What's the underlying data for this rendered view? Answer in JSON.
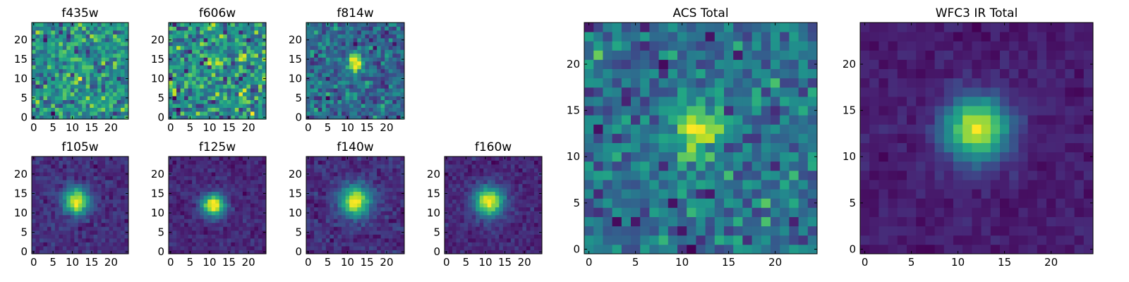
{
  "figure_title": "",
  "chart_data": [
    {
      "type": "heatmap",
      "title": "f435w",
      "size": 25,
      "xticks": [
        0,
        5,
        10,
        15,
        20
      ],
      "yticks": [
        0,
        5,
        10,
        15,
        20
      ],
      "peak": [
        12,
        12
      ],
      "amplitude": 0.05,
      "sigma": 2.2,
      "noise": 0.45,
      "seed": 11
    },
    {
      "type": "heatmap",
      "title": "f606w",
      "size": 25,
      "xticks": [
        0,
        5,
        10,
        15,
        20
      ],
      "yticks": [
        0,
        5,
        10,
        15,
        20
      ],
      "peak": [
        12,
        14
      ],
      "amplitude": 0.08,
      "sigma": 2.0,
      "noise": 0.4,
      "seed": 23
    },
    {
      "type": "heatmap",
      "title": "f814w",
      "size": 25,
      "xticks": [
        0,
        5,
        10,
        15,
        20
      ],
      "yticks": [
        0,
        5,
        10,
        15,
        20
      ],
      "peak": [
        12,
        14
      ],
      "amplitude": 0.35,
      "sigma": 1.5,
      "noise": 0.35,
      "seed": 37
    },
    {
      "type": "heatmap",
      "title": "f105w",
      "size": 25,
      "xticks": [
        0,
        5,
        10,
        15,
        20
      ],
      "yticks": [
        0,
        5,
        10,
        15,
        20
      ],
      "peak": [
        11,
        13
      ],
      "amplitude": 0.75,
      "sigma": 2.3,
      "noise": 0.18,
      "seed": 41
    },
    {
      "type": "heatmap",
      "title": "f125w",
      "size": 25,
      "xticks": [
        0,
        5,
        10,
        15,
        20
      ],
      "yticks": [
        0,
        5,
        10,
        15,
        20
      ],
      "peak": [
        11,
        12
      ],
      "amplitude": 0.85,
      "sigma": 2.0,
      "noise": 0.15,
      "seed": 53
    },
    {
      "type": "heatmap",
      "title": "f140w",
      "size": 25,
      "xticks": [
        0,
        5,
        10,
        15,
        20
      ],
      "yticks": [
        0,
        5,
        10,
        15,
        20
      ],
      "peak": [
        12,
        13
      ],
      "amplitude": 0.7,
      "sigma": 2.8,
      "noise": 0.2,
      "seed": 67
    },
    {
      "type": "heatmap",
      "title": "f160w",
      "size": 25,
      "xticks": [
        0,
        5,
        10,
        15,
        20
      ],
      "yticks": [
        0,
        5,
        10,
        15,
        20
      ],
      "peak": [
        11,
        13
      ],
      "amplitude": 0.8,
      "sigma": 2.6,
      "noise": 0.16,
      "seed": 79
    },
    {
      "type": "heatmap",
      "title": "ACS Total",
      "size": 25,
      "xticks": [
        0,
        5,
        10,
        15,
        20
      ],
      "yticks": [
        0,
        5,
        10,
        15,
        20
      ],
      "peak": [
        12,
        13
      ],
      "amplitude": 0.3,
      "sigma": 2.0,
      "noise": 0.35,
      "seed": 83
    },
    {
      "type": "heatmap",
      "title": "WFC3 IR Total",
      "size": 25,
      "xticks": [
        0,
        5,
        10,
        15,
        20
      ],
      "yticks": [
        0,
        5,
        10,
        15,
        20
      ],
      "peak": [
        12,
        13
      ],
      "amplitude": 0.9,
      "sigma": 2.4,
      "noise": 0.08,
      "seed": 97
    }
  ],
  "colormap": "viridis"
}
